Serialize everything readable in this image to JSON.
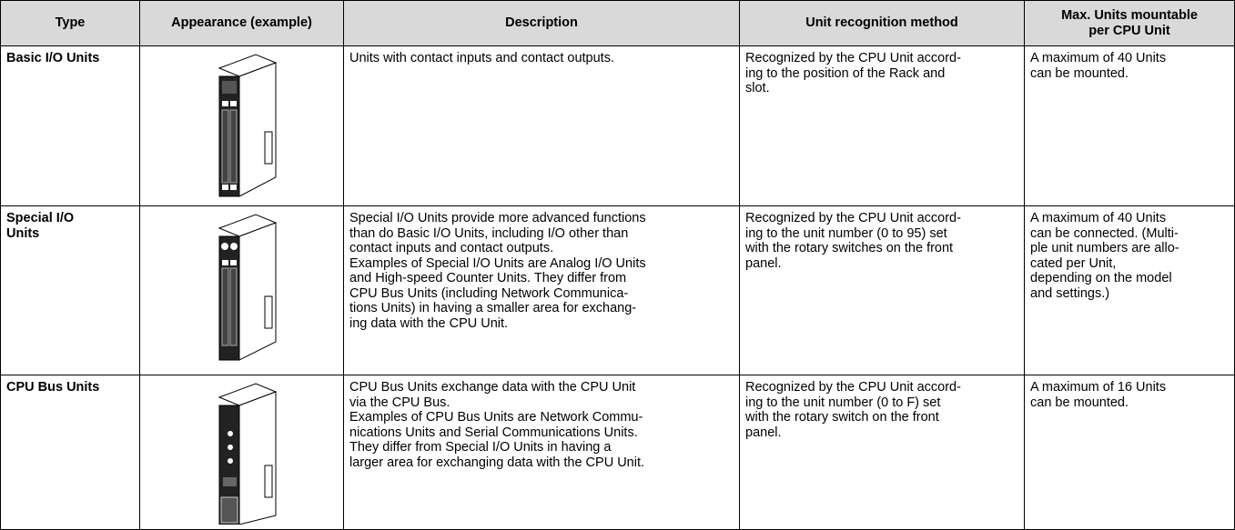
{
  "table": {
    "header": {
      "type": [
        "Type"
      ],
      "appearance": [
        "Appearance (example)"
      ],
      "description": [
        "Description"
      ],
      "recognition": [
        "Unit recognition method"
      ],
      "max": [
        "Max. Units mountable",
        "per CPU Unit"
      ]
    },
    "rows": [
      {
        "type": [
          "Basic I/O Units"
        ],
        "description": [
          "Units with contact inputs and contact outputs."
        ],
        "recognition": [
          "Recognized by the CPU Unit accord-",
          "ing to the position of the Rack and",
          "slot."
        ],
        "max": [
          "A maximum of 40 Units",
          "can be mounted."
        ]
      },
      {
        "type": [
          "Special I/O",
          "Units"
        ],
        "description": [
          "Special I/O Units provide more advanced functions",
          "than do Basic I/O Units, including I/O other than",
          "contact inputs and contact outputs.",
          "Examples of Special I/O Units are Analog I/O Units",
          "and High-speed Counter Units. They differ from",
          "CPU Bus Units (including Network Communica-",
          "tions Units) in having a smaller area for exchang-",
          "ing data with the CPU Unit."
        ],
        "recognition": [
          "Recognized by the CPU Unit accord-",
          "ing to the unit number (0 to 95) set",
          "with the rotary switches on the front",
          "panel."
        ],
        "max": [
          "A maximum of 40 Units",
          "can be connected. (Multi-",
          "ple unit numbers are allo-",
          "cated per Unit,",
          "depending on the model",
          "and settings.)"
        ]
      },
      {
        "type": [
          "CPU Bus Units"
        ],
        "description": [
          "CPU Bus Units exchange data with the CPU Unit",
          "via the CPU Bus.",
          "Examples of CPU Bus Units are Network Commu-",
          "nications Units and Serial Communications Units.",
          "They differ from Special I/O Units in having a",
          "larger area for exchanging data with the CPU Unit."
        ],
        "recognition": [
          "Recognized by the CPU Unit accord-",
          "ing to the unit number (0 to F) set",
          "with the rotary switch on the front",
          "panel."
        ],
        "max": [
          "A maximum of 16 Units",
          "can be mounted."
        ]
      }
    ]
  }
}
